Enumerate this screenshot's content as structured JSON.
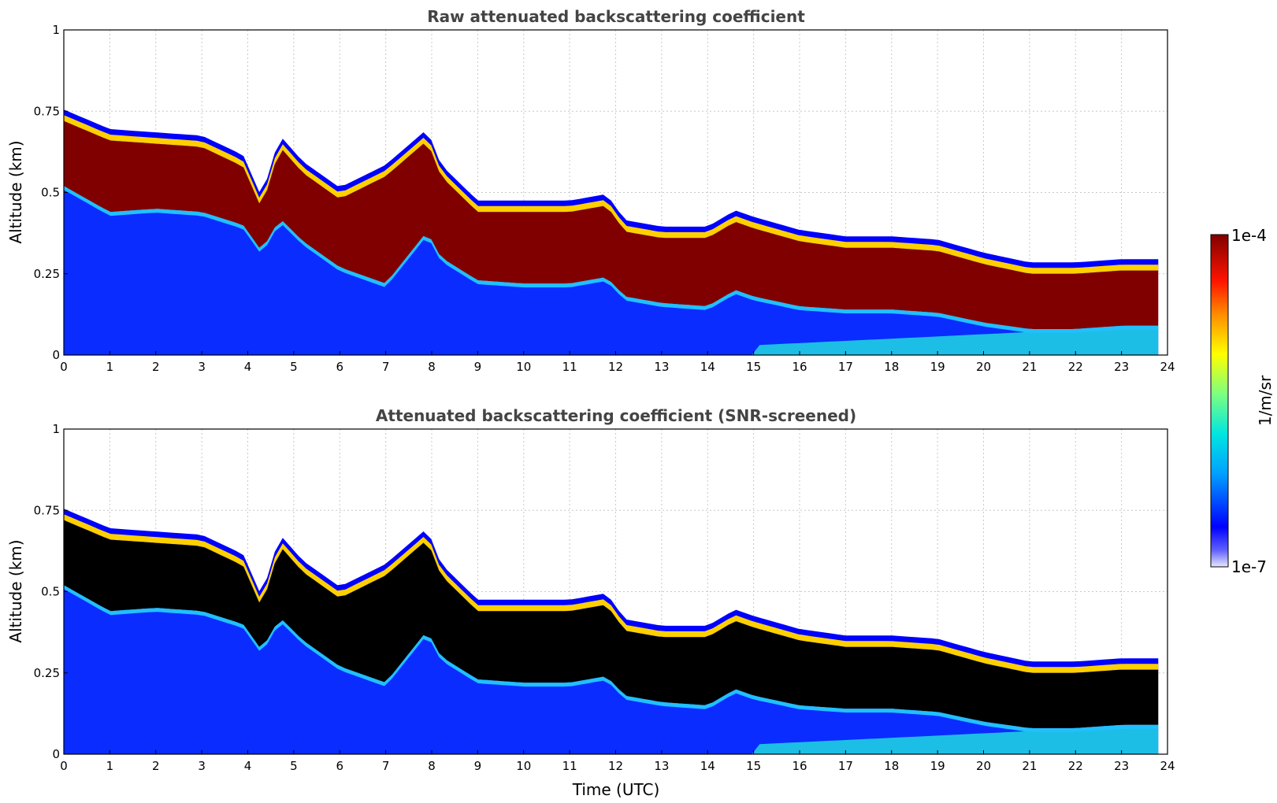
{
  "chart_data": [
    {
      "type": "heatmap",
      "title": "Raw attenuated backscattering coefficient",
      "xlabel": "",
      "ylabel": "Altitude (km)",
      "xlim": [
        0,
        24
      ],
      "ylim": [
        0,
        1
      ],
      "x_ticks": [
        "0",
        "1",
        "2",
        "3",
        "4",
        "5",
        "6",
        "7",
        "8",
        "9",
        "10",
        "11",
        "12",
        "13",
        "14",
        "15",
        "16",
        "17",
        "18",
        "19",
        "20",
        "21",
        "22",
        "23",
        "24"
      ],
      "y_ticks": [
        "0",
        "0.25",
        "0.5",
        "0.75",
        "1"
      ],
      "grid": true,
      "screened": false,
      "layer": {
        "time_utc": [
          0,
          0.5,
          1,
          2,
          3,
          3.9,
          4.3,
          4.7,
          5.2,
          6,
          7,
          7.9,
          8.2,
          9,
          10,
          11,
          11.8,
          12.2,
          13,
          14,
          14.6,
          15,
          16,
          17,
          18,
          19,
          20,
          21,
          22,
          23,
          23.8
        ],
        "top_km": [
          0.72,
          0.69,
          0.66,
          0.65,
          0.64,
          0.58,
          0.45,
          0.64,
          0.56,
          0.48,
          0.55,
          0.66,
          0.55,
          0.44,
          0.44,
          0.44,
          0.46,
          0.38,
          0.36,
          0.36,
          0.41,
          0.39,
          0.35,
          0.33,
          0.33,
          0.32,
          0.28,
          0.25,
          0.25,
          0.26,
          0.26
        ],
        "base_km": [
          0.52,
          0.48,
          0.44,
          0.45,
          0.44,
          0.4,
          0.32,
          0.42,
          0.35,
          0.27,
          0.22,
          0.38,
          0.3,
          0.23,
          0.22,
          0.22,
          0.24,
          0.18,
          0.16,
          0.15,
          0.2,
          0.18,
          0.15,
          0.14,
          0.14,
          0.13,
          0.1,
          0.08,
          0.08,
          0.09,
          0.09
        ]
      },
      "data_end_utc": 23.8
    },
    {
      "type": "heatmap",
      "title": "Attenuated backscattering coefficient (SNR-screened)",
      "xlabel": "Time (UTC)",
      "ylabel": "Altitude (km)",
      "xlim": [
        0,
        24
      ],
      "ylim": [
        0,
        1
      ],
      "x_ticks": [
        "0",
        "1",
        "2",
        "3",
        "4",
        "5",
        "6",
        "7",
        "8",
        "9",
        "10",
        "11",
        "12",
        "13",
        "14",
        "15",
        "16",
        "17",
        "18",
        "19",
        "20",
        "21",
        "22",
        "23",
        "24"
      ],
      "y_ticks": [
        "0",
        "0.25",
        "0.5",
        "0.75",
        "1"
      ],
      "grid": true,
      "screened": true,
      "saturated_color": "#000000",
      "data_end_utc": 23.8
    }
  ],
  "colorbar": {
    "label": "1/m/sr",
    "max_label": "1e-4",
    "min_label": "1e-7",
    "scale": "log",
    "range": [
      1e-07,
      0.0001
    ],
    "colors": [
      "#e8e8ff",
      "#0000ff",
      "#00a0ff",
      "#00e6e0",
      "#7cff80",
      "#ffff00",
      "#ff8c00",
      "#ff1400",
      "#800000"
    ]
  }
}
